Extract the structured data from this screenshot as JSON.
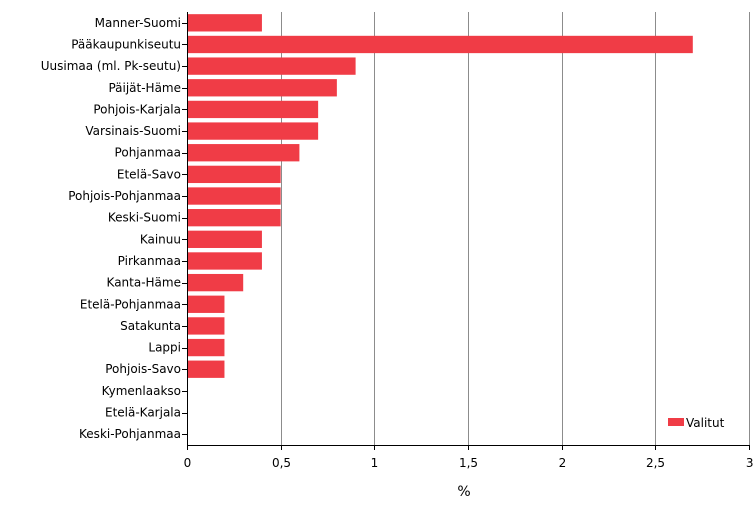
{
  "chart_data": {
    "type": "bar",
    "orientation": "horizontal",
    "categories": [
      "Manner-Suomi",
      "Pääkaupunkiseutu",
      "Uusimaa (ml. Pk-seutu)",
      "Päijät-Häme",
      "Pohjois-Karjala",
      "Varsinais-Suomi",
      "Pohjanmaa",
      "Etelä-Savo",
      "Pohjois-Pohjanmaa",
      "Keski-Suomi",
      "Kainuu",
      "Pirkanmaa",
      "Kanta-Häme",
      "Etelä-Pohjanmaa",
      "Satakunta",
      "Lappi",
      "Pohjois-Savo",
      "Kymenlaakso",
      "Etelä-Karjala",
      "Keski-Pohjanmaa"
    ],
    "series": [
      {
        "name": "Valitut",
        "color": "#f03c46",
        "values": [
          0.4,
          2.7,
          0.9,
          0.8,
          0.7,
          0.7,
          0.6,
          0.5,
          0.5,
          0.5,
          0.4,
          0.4,
          0.3,
          0.2,
          0.2,
          0.2,
          0.2,
          0,
          0,
          0
        ]
      }
    ],
    "xlim": [
      0,
      3
    ],
    "xticks": [
      0,
      0.5,
      1,
      1.5,
      2,
      2.5,
      3
    ],
    "xtick_labels": [
      "0",
      "0,5",
      "1",
      "1,5",
      "2",
      "2,5",
      "3"
    ],
    "xlabel": "%",
    "ylabel": "",
    "grid": "vertical",
    "legend": {
      "position": "bottom-right",
      "entries": [
        "Valitut"
      ]
    }
  }
}
